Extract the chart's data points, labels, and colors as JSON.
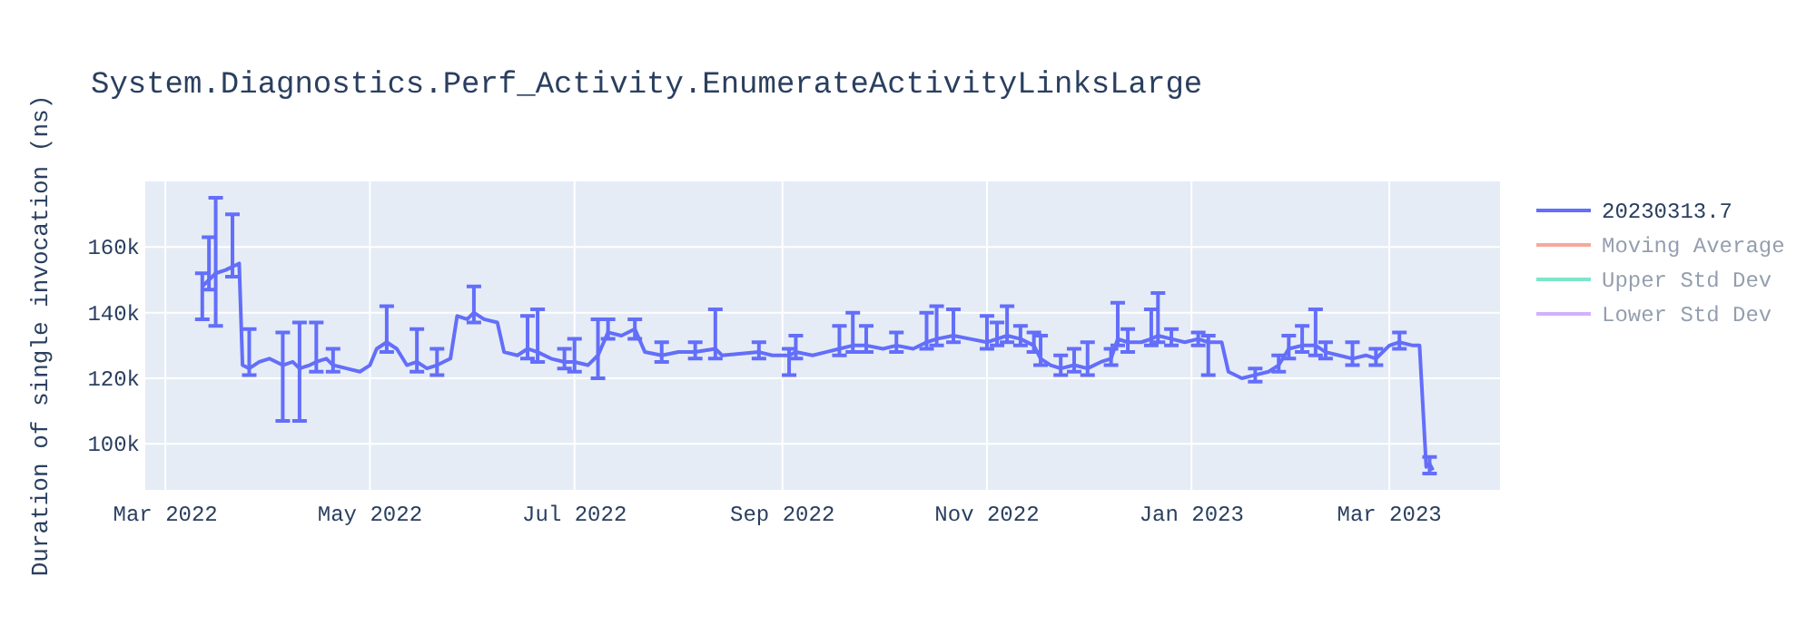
{
  "chart_data": {
    "type": "line",
    "title": "System.Diagnostics.Perf_Activity.EnumerateActivityLinksLarge",
    "ylabel": "Duration of single invocation (ns)",
    "x": [
      "2022-03-12",
      "2022-03-14",
      "2022-03-16",
      "2022-03-19",
      "2022-03-21",
      "2022-03-23",
      "2022-03-24",
      "2022-03-26",
      "2022-03-29",
      "2022-04-01",
      "2022-04-05",
      "2022-04-08",
      "2022-04-10",
      "2022-04-13",
      "2022-04-15",
      "2022-04-18",
      "2022-04-20",
      "2022-04-24",
      "2022-04-28",
      "2022-05-01",
      "2022-05-03",
      "2022-05-06",
      "2022-05-09",
      "2022-05-12",
      "2022-05-15",
      "2022-05-18",
      "2022-05-21",
      "2022-05-25",
      "2022-05-27",
      "2022-05-30",
      "2022-06-01",
      "2022-06-04",
      "2022-06-08",
      "2022-06-10",
      "2022-06-14",
      "2022-06-17",
      "2022-06-20",
      "2022-06-24",
      "2022-06-28",
      "2022-07-01",
      "2022-07-05",
      "2022-07-08",
      "2022-07-11",
      "2022-07-15",
      "2022-07-19",
      "2022-07-22",
      "2022-07-27",
      "2022-08-01",
      "2022-08-06",
      "2022-08-12",
      "2022-08-14",
      "2022-08-25",
      "2022-08-29",
      "2022-09-03",
      "2022-09-05",
      "2022-09-10",
      "2022-09-14",
      "2022-09-18",
      "2022-09-22",
      "2022-09-26",
      "2022-10-01",
      "2022-10-05",
      "2022-10-10",
      "2022-10-14",
      "2022-10-17",
      "2022-10-22",
      "2022-10-27",
      "2022-11-01",
      "2022-11-04",
      "2022-11-07",
      "2022-11-11",
      "2022-11-15",
      "2022-11-17",
      "2022-11-20",
      "2022-11-23",
      "2022-11-27",
      "2022-12-01",
      "2022-12-05",
      "2022-12-08",
      "2022-12-10",
      "2022-12-13",
      "2022-12-17",
      "2022-12-20",
      "2022-12-22",
      "2022-12-26",
      "2022-12-30",
      "2023-01-03",
      "2023-01-06",
      "2023-01-10",
      "2023-01-12",
      "2023-01-16",
      "2023-01-20",
      "2023-01-24",
      "2023-01-27",
      "2023-01-30",
      "2023-02-03",
      "2023-02-07",
      "2023-02-10",
      "2023-02-14",
      "2023-02-18",
      "2023-02-22",
      "2023-02-25",
      "2023-03-01",
      "2023-03-04",
      "2023-03-08",
      "2023-03-10",
      "2023-03-12",
      "2023-03-13",
      "2023-03-14"
    ],
    "series": [
      {
        "name": "20230313.7",
        "color": "#636efa",
        "values": [
          148000,
          150000,
          152000,
          153000,
          154000,
          155000,
          124000,
          123000,
          125000,
          126000,
          124000,
          125000,
          123000,
          124000,
          125000,
          126000,
          124000,
          123000,
          122000,
          124000,
          129000,
          131000,
          129000,
          124000,
          125000,
          123000,
          124000,
          126000,
          139000,
          138000,
          140000,
          138000,
          137000,
          128000,
          127000,
          129000,
          128000,
          126000,
          125000,
          125000,
          124000,
          127000,
          134000,
          133000,
          135000,
          128000,
          127000,
          128000,
          128000,
          129000,
          127000,
          128000,
          127000,
          127000,
          128000,
          127000,
          128000,
          129000,
          130000,
          130000,
          129000,
          130000,
          129000,
          131000,
          132000,
          133000,
          132000,
          131000,
          132000,
          133000,
          132000,
          130000,
          126000,
          124000,
          123000,
          124000,
          123000,
          125000,
          126000,
          132000,
          131000,
          131000,
          132000,
          133000,
          132000,
          131000,
          132000,
          131000,
          131000,
          122000,
          120000,
          121000,
          122000,
          124000,
          129000,
          130000,
          130000,
          128000,
          127000,
          126000,
          127000,
          126000,
          130000,
          131000,
          130000,
          130000,
          93000,
          94000,
          92000
        ],
        "errors": [
          [
            138000,
            152000
          ],
          [
            147000,
            163000
          ],
          [
            136000,
            175000
          ],
          null,
          [
            151000,
            170000
          ],
          null,
          null,
          [
            121000,
            135000
          ],
          null,
          null,
          [
            107000,
            134000
          ],
          null,
          [
            107000,
            137000
          ],
          null,
          [
            122000,
            137000
          ],
          null,
          [
            122000,
            129000
          ],
          null,
          null,
          null,
          null,
          [
            128000,
            142000
          ],
          null,
          null,
          [
            122000,
            135000
          ],
          null,
          [
            121000,
            129000
          ],
          null,
          null,
          null,
          [
            137000,
            148000
          ],
          null,
          null,
          null,
          null,
          [
            126000,
            139000
          ],
          [
            125000,
            141000
          ],
          null,
          [
            123000,
            129000
          ],
          [
            122000,
            132000
          ],
          null,
          [
            120000,
            138000
          ],
          [
            132000,
            138000
          ],
          null,
          [
            132000,
            138000
          ],
          null,
          [
            125000,
            131000
          ],
          null,
          [
            126000,
            131000
          ],
          [
            126000,
            141000
          ],
          null,
          [
            126000,
            131000
          ],
          null,
          [
            121000,
            129000
          ],
          [
            126000,
            133000
          ],
          null,
          null,
          [
            127000,
            136000
          ],
          [
            128000,
            140000
          ],
          [
            128000,
            136000
          ],
          null,
          [
            128000,
            134000
          ],
          null,
          [
            129000,
            140000
          ],
          [
            130000,
            142000
          ],
          [
            131000,
            141000
          ],
          null,
          [
            129000,
            139000
          ],
          [
            130000,
            137000
          ],
          [
            131000,
            142000
          ],
          [
            130000,
            136000
          ],
          [
            128000,
            134000
          ],
          [
            124000,
            133000
          ],
          null,
          [
            121000,
            127000
          ],
          [
            122000,
            129000
          ],
          [
            121000,
            131000
          ],
          null,
          [
            124000,
            129000
          ],
          [
            130000,
            143000
          ],
          [
            128000,
            135000
          ],
          null,
          [
            130000,
            141000
          ],
          [
            131000,
            146000
          ],
          [
            130000,
            135000
          ],
          null,
          [
            130000,
            134000
          ],
          [
            121000,
            133000
          ],
          null,
          null,
          null,
          [
            119000,
            123000
          ],
          null,
          [
            122000,
            127000
          ],
          [
            126000,
            133000
          ],
          [
            128000,
            136000
          ],
          [
            127000,
            141000
          ],
          [
            126000,
            131000
          ],
          null,
          [
            124000,
            131000
          ],
          null,
          [
            124000,
            129000
          ],
          null,
          [
            129000,
            134000
          ],
          null,
          null,
          null,
          [
            91000,
            96000
          ],
          null
        ]
      },
      {
        "name": "Moving Average",
        "color": "#ef553b",
        "values": [
          null,
          null,
          null,
          null,
          null,
          null,
          null,
          null,
          null,
          null,
          null,
          null,
          null,
          null,
          null,
          null,
          null,
          null,
          null,
          null,
          null,
          null,
          null,
          null,
          null,
          null,
          null,
          null,
          null,
          null,
          null,
          null,
          null,
          null,
          null,
          null,
          null,
          null,
          null,
          null,
          null,
          null,
          null,
          null,
          null,
          null,
          null,
          null,
          null,
          null,
          null,
          null,
          null,
          null,
          null,
          null,
          null,
          null,
          null,
          null,
          null,
          null,
          null,
          null,
          null,
          null,
          null,
          null,
          null,
          null,
          null,
          null,
          null,
          null,
          null,
          null,
          null,
          null,
          null,
          null,
          null,
          null,
          null,
          null,
          null,
          null,
          null,
          null,
          null,
          null,
          null,
          null,
          null,
          null,
          null,
          null,
          null,
          null,
          null,
          null,
          null,
          null,
          null,
          null,
          null,
          null,
          null,
          null,
          null
        ]
      },
      {
        "name": "Upper Std Dev",
        "color": "#00cc96",
        "values": [
          null,
          null,
          null,
          null,
          null,
          null,
          null,
          null,
          null,
          null,
          null,
          null,
          null,
          null,
          null,
          null,
          null,
          null,
          null,
          null,
          null,
          null,
          null,
          null,
          null,
          null,
          null,
          null,
          null,
          null,
          null,
          null,
          null,
          null,
          null,
          null,
          null,
          null,
          null,
          null,
          null,
          null,
          null,
          null,
          null,
          null,
          null,
          null,
          null,
          null,
          null,
          null,
          null,
          null,
          null,
          null,
          null,
          null,
          null,
          null,
          null,
          null,
          null,
          null,
          null,
          null,
          null,
          null,
          null,
          null,
          null,
          null,
          null,
          null,
          null,
          null,
          null,
          null,
          null,
          null,
          null,
          null,
          null,
          null,
          null,
          null,
          null,
          null,
          null,
          null,
          null,
          null,
          null,
          null,
          null,
          null,
          null,
          null,
          null,
          null,
          null,
          null,
          null,
          null,
          null,
          null,
          null,
          null,
          null
        ]
      },
      {
        "name": "Lower Std Dev",
        "color": "#ab63fa",
        "values": [
          null,
          null,
          null,
          null,
          null,
          null,
          null,
          null,
          null,
          null,
          null,
          null,
          null,
          null,
          null,
          null,
          null,
          null,
          null,
          null,
          null,
          null,
          null,
          null,
          null,
          null,
          null,
          null,
          null,
          null,
          null,
          null,
          null,
          null,
          null,
          null,
          null,
          null,
          null,
          null,
          null,
          null,
          null,
          null,
          null,
          null,
          null,
          null,
          null,
          null,
          null,
          null,
          null,
          null,
          null,
          null,
          null,
          null,
          null,
          null,
          null,
          null,
          null,
          null,
          null,
          null,
          null,
          null,
          null,
          null,
          null,
          null,
          null,
          null,
          null,
          null,
          null,
          null,
          null,
          null,
          null,
          null,
          null,
          null,
          null,
          null,
          null,
          null,
          null,
          null,
          null,
          null,
          null,
          null,
          null,
          null,
          null,
          null,
          null,
          null,
          null,
          null,
          null,
          null,
          null,
          null,
          null,
          null,
          null
        ]
      }
    ],
    "xlim": [
      "2022-02-23",
      "2023-04-03"
    ],
    "xticks": [
      {
        "value": "2022-03-01",
        "label": "Mar 2022"
      },
      {
        "value": "2022-05-01",
        "label": "May 2022"
      },
      {
        "value": "2022-07-01",
        "label": "Jul 2022"
      },
      {
        "value": "2022-09-01",
        "label": "Sep 2022"
      },
      {
        "value": "2022-11-01",
        "label": "Nov 2022"
      },
      {
        "value": "2023-01-01",
        "label": "Jan 2023"
      },
      {
        "value": "2023-03-01",
        "label": "Mar 2023"
      }
    ],
    "ylim": [
      86000,
      180000
    ],
    "yticks": [
      {
        "value": 100000,
        "label": "100k"
      },
      {
        "value": 120000,
        "label": "120k"
      },
      {
        "value": 140000,
        "label": "140k"
      },
      {
        "value": 160000,
        "label": "160k"
      }
    ],
    "grid": true,
    "legend": "right",
    "line_style": "solid"
  }
}
